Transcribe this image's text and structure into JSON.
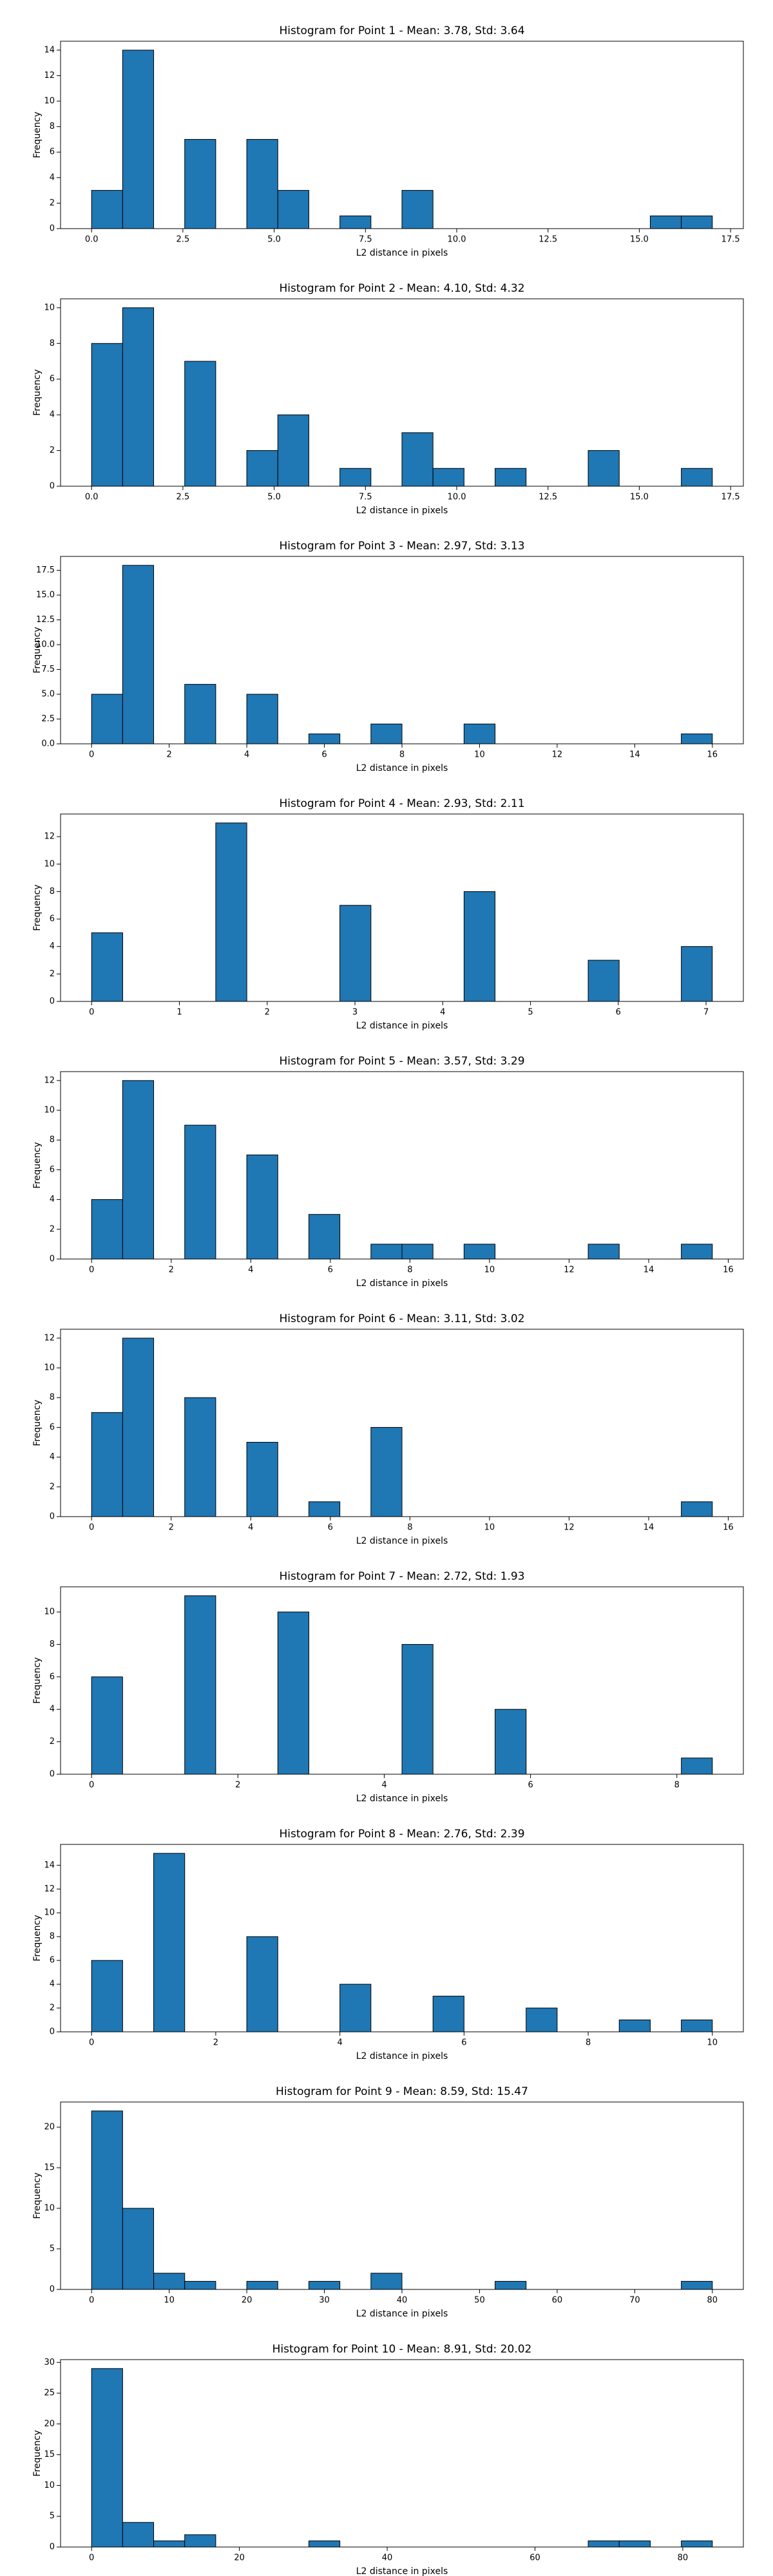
{
  "chart_data": [
    {
      "type": "histogram",
      "title": "Histogram for Point 1 - Mean: 3.78, Std: 3.64",
      "xlabel": "L2 distance in pixels",
      "ylabel": "Frequency",
      "color": "#1f77b4",
      "bins": [
        0,
        0.85,
        1.7,
        2.55,
        3.4,
        4.25,
        5.1,
        5.95,
        6.8,
        7.65,
        8.5,
        9.35,
        10.2,
        11.05,
        11.9,
        12.75,
        13.6,
        14.45,
        15.3,
        16.15,
        17
      ],
      "values": [
        3,
        14,
        0,
        7,
        0,
        7,
        3,
        0,
        1,
        0,
        3,
        0,
        0,
        0,
        0,
        0,
        0,
        0,
        1,
        1
      ],
      "xlim": [
        -0.85,
        17.85
      ],
      "ylim": [
        0,
        14.7
      ],
      "xticks": [
        {
          "value": 0,
          "label": "0.0"
        },
        {
          "value": 2.5,
          "label": "2.5"
        },
        {
          "value": 5,
          "label": "5.0"
        },
        {
          "value": 7.5,
          "label": "7.5"
        },
        {
          "value": 10,
          "label": "10.0"
        },
        {
          "value": 12.5,
          "label": "12.5"
        },
        {
          "value": 15,
          "label": "15.0"
        },
        {
          "value": 17.5,
          "label": "17.5"
        }
      ],
      "yticks": [
        0,
        2,
        4,
        6,
        8,
        10,
        12,
        14
      ]
    },
    {
      "type": "histogram",
      "title": "Histogram for Point 2 - Mean: 4.10, Std: 4.32",
      "xlabel": "L2 distance in pixels",
      "ylabel": "Frequency",
      "color": "#1f77b4",
      "bins": [
        0,
        0.85,
        1.7,
        2.55,
        3.4,
        4.25,
        5.1,
        5.95,
        6.8,
        7.65,
        8.5,
        9.35,
        10.2,
        11.05,
        11.9,
        12.75,
        13.6,
        14.45,
        15.3,
        16.15,
        17
      ],
      "values": [
        8,
        10,
        0,
        7,
        0,
        2,
        4,
        0,
        1,
        0,
        3,
        1,
        0,
        1,
        0,
        0,
        2,
        0,
        0,
        1
      ],
      "xlim": [
        -0.85,
        17.85
      ],
      "ylim": [
        0,
        10.5
      ],
      "xticks": [
        {
          "value": 0,
          "label": "0.0"
        },
        {
          "value": 2.5,
          "label": "2.5"
        },
        {
          "value": 5,
          "label": "5.0"
        },
        {
          "value": 7.5,
          "label": "7.5"
        },
        {
          "value": 10,
          "label": "10.0"
        },
        {
          "value": 12.5,
          "label": "12.5"
        },
        {
          "value": 15,
          "label": "15.0"
        },
        {
          "value": 17.5,
          "label": "17.5"
        }
      ],
      "yticks": [
        0,
        2,
        4,
        6,
        8,
        10
      ]
    },
    {
      "type": "histogram",
      "title": "Histogram for Point 3 - Mean: 2.97, Std: 3.13",
      "xlabel": "L2 distance in pixels",
      "ylabel": "Frequency",
      "color": "#1f77b4",
      "bins": [
        0,
        0.8,
        1.6,
        2.4,
        3.2,
        4,
        4.8,
        5.6,
        6.4,
        7.2,
        8,
        8.8,
        9.6,
        10.4,
        11.2,
        12,
        12.8,
        13.6,
        14.4,
        15.2,
        16
      ],
      "values": [
        5,
        18,
        0,
        6,
        0,
        5,
        0,
        1,
        0,
        2,
        0,
        0,
        2,
        0,
        0,
        0,
        0,
        0,
        0,
        1
      ],
      "xlim": [
        -0.8,
        16.8
      ],
      "ylim": [
        0,
        18.9
      ],
      "xticks": [
        0,
        2,
        4,
        6,
        8,
        10,
        12,
        14,
        16
      ],
      "yticks": [
        {
          "value": 0,
          "label": "0.0"
        },
        {
          "value": 2.5,
          "label": "2.5"
        },
        {
          "value": 5,
          "label": "5.0"
        },
        {
          "value": 7.5,
          "label": "7.5"
        },
        {
          "value": 10,
          "label": "10.0"
        },
        {
          "value": 12.5,
          "label": "12.5"
        },
        {
          "value": 15,
          "label": "15.0"
        },
        {
          "value": 17.5,
          "label": "17.5"
        }
      ]
    },
    {
      "type": "histogram",
      "title": "Histogram for Point 4 - Mean: 2.93, Std: 2.11",
      "xlabel": "L2 distance in pixels",
      "ylabel": "Frequency",
      "color": "#1f77b4",
      "bins": [
        0,
        0.354,
        0.707,
        1.061,
        1.414,
        1.768,
        2.121,
        2.475,
        2.828,
        3.182,
        3.536,
        3.889,
        4.243,
        4.596,
        4.95,
        5.303,
        5.657,
        6.01,
        6.364,
        6.718,
        7.071
      ],
      "values": [
        5,
        0,
        0,
        0,
        13,
        0,
        0,
        0,
        7,
        0,
        0,
        0,
        8,
        0,
        0,
        0,
        3,
        0,
        0,
        4
      ],
      "xlim": [
        -0.354,
        7.425
      ],
      "ylim": [
        0,
        13.65
      ],
      "xticks": [
        0,
        1,
        2,
        3,
        4,
        5,
        6,
        7
      ],
      "yticks": [
        0,
        2,
        4,
        6,
        8,
        10,
        12
      ]
    },
    {
      "type": "histogram",
      "title": "Histogram for Point 5 - Mean: 3.57, Std: 3.29",
      "xlabel": "L2 distance in pixels",
      "ylabel": "Frequency",
      "color": "#1f77b4",
      "bins": [
        0,
        0.78,
        1.56,
        2.34,
        3.12,
        3.9,
        4.68,
        5.46,
        6.24,
        7.02,
        7.8,
        8.58,
        9.36,
        10.14,
        10.92,
        11.7,
        12.48,
        13.26,
        14.04,
        14.82,
        15.6
      ],
      "values": [
        4,
        12,
        0,
        9,
        0,
        7,
        0,
        3,
        0,
        1,
        1,
        0,
        1,
        0,
        0,
        0,
        1,
        0,
        0,
        1
      ],
      "xlim": [
        -0.78,
        16.38
      ],
      "ylim": [
        0,
        12.6
      ],
      "xticks": [
        0,
        2,
        4,
        6,
        8,
        10,
        12,
        14,
        16
      ],
      "yticks": [
        0,
        2,
        4,
        6,
        8,
        10,
        12
      ]
    },
    {
      "type": "histogram",
      "title": "Histogram for Point 6 - Mean: 3.11, Std: 3.02",
      "xlabel": "L2 distance in pixels",
      "ylabel": "Frequency",
      "color": "#1f77b4",
      "bins": [
        0,
        0.78,
        1.56,
        2.34,
        3.12,
        3.9,
        4.68,
        5.46,
        6.24,
        7.02,
        7.8,
        8.58,
        9.36,
        10.14,
        10.92,
        11.7,
        12.48,
        13.26,
        14.04,
        14.82,
        15.6
      ],
      "values": [
        7,
        12,
        0,
        8,
        0,
        5,
        0,
        1,
        0,
        6,
        0,
        0,
        0,
        0,
        0,
        0,
        0,
        0,
        0,
        1
      ],
      "xlim": [
        -0.78,
        16.38
      ],
      "ylim": [
        0,
        12.6
      ],
      "xticks": [
        0,
        2,
        4,
        6,
        8,
        10,
        12,
        14,
        16
      ],
      "yticks": [
        0,
        2,
        4,
        6,
        8,
        10,
        12
      ]
    },
    {
      "type": "histogram",
      "title": "Histogram for Point 7 - Mean: 2.72, Std: 1.93",
      "xlabel": "L2 distance in pixels",
      "ylabel": "Frequency",
      "color": "#1f77b4",
      "bins": [
        0,
        0.424,
        0.849,
        1.273,
        1.697,
        2.121,
        2.546,
        2.97,
        3.394,
        3.818,
        4.243,
        4.667,
        5.091,
        5.515,
        5.94,
        6.364,
        6.788,
        7.212,
        7.637,
        8.061,
        8.485
      ],
      "values": [
        6,
        0,
        0,
        11,
        0,
        0,
        10,
        0,
        0,
        0,
        8,
        0,
        0,
        4,
        0,
        0,
        0,
        0,
        0,
        1
      ],
      "xlim": [
        -0.424,
        8.909
      ],
      "ylim": [
        0,
        11.55
      ],
      "xticks": [
        0,
        2,
        4,
        6,
        8
      ],
      "yticks": [
        0,
        2,
        4,
        6,
        8,
        10
      ]
    },
    {
      "type": "histogram",
      "title": "Histogram for Point 8 - Mean: 2.76, Std: 2.39",
      "xlabel": "L2 distance in pixels",
      "ylabel": "Frequency",
      "color": "#1f77b4",
      "bins": [
        0,
        0.5,
        1,
        1.5,
        2,
        2.5,
        3,
        3.5,
        4,
        4.5,
        5,
        5.5,
        6,
        6.5,
        7,
        7.5,
        8,
        8.5,
        9,
        9.5,
        10
      ],
      "values": [
        6,
        0,
        15,
        0,
        0,
        8,
        0,
        0,
        4,
        0,
        0,
        3,
        0,
        0,
        2,
        0,
        0,
        1,
        0,
        1
      ],
      "xlim": [
        -0.5,
        10.5
      ],
      "ylim": [
        0,
        15.75
      ],
      "xticks": [
        0,
        2,
        4,
        6,
        8,
        10
      ],
      "yticks": [
        0,
        2,
        4,
        6,
        8,
        10,
        12,
        14
      ]
    },
    {
      "type": "histogram",
      "title": "Histogram for Point 9 - Mean: 8.59, Std: 15.47",
      "xlabel": "L2 distance in pixels",
      "ylabel": "Frequency",
      "color": "#1f77b4",
      "bins": [
        0,
        4,
        8,
        12,
        16,
        20,
        24,
        28,
        32,
        36,
        40,
        44,
        48,
        52,
        56,
        60,
        64,
        68,
        72,
        76,
        80
      ],
      "values": [
        22,
        10,
        2,
        1,
        0,
        1,
        0,
        1,
        0,
        2,
        0,
        0,
        0,
        1,
        0,
        0,
        0,
        0,
        0,
        1
      ],
      "xlim": [
        -4,
        84
      ],
      "ylim": [
        0,
        23.1
      ],
      "xticks": [
        0,
        10,
        20,
        30,
        40,
        50,
        60,
        70,
        80
      ],
      "yticks": [
        0,
        5,
        10,
        15,
        20
      ]
    },
    {
      "type": "histogram",
      "title": "Histogram for Point 10 - Mean: 8.91, Std: 20.02",
      "xlabel": "L2 distance in pixels",
      "ylabel": "Frequency",
      "color": "#1f77b4",
      "bins": [
        0,
        4.2,
        8.4,
        12.6,
        16.8,
        21,
        25.2,
        29.4,
        33.6,
        37.8,
        42,
        46.2,
        50.4,
        54.6,
        58.8,
        63,
        67.2,
        71.4,
        75.6,
        79.8,
        84
      ],
      "values": [
        29,
        4,
        1,
        2,
        0,
        0,
        0,
        1,
        0,
        0,
        0,
        0,
        0,
        0,
        0,
        0,
        1,
        1,
        0,
        1
      ],
      "xlim": [
        -4.2,
        88.2
      ],
      "ylim": [
        0,
        30.45
      ],
      "xticks": [
        0,
        20,
        40,
        60,
        80
      ],
      "yticks": [
        0,
        5,
        10,
        15,
        20,
        25,
        30
      ]
    }
  ]
}
